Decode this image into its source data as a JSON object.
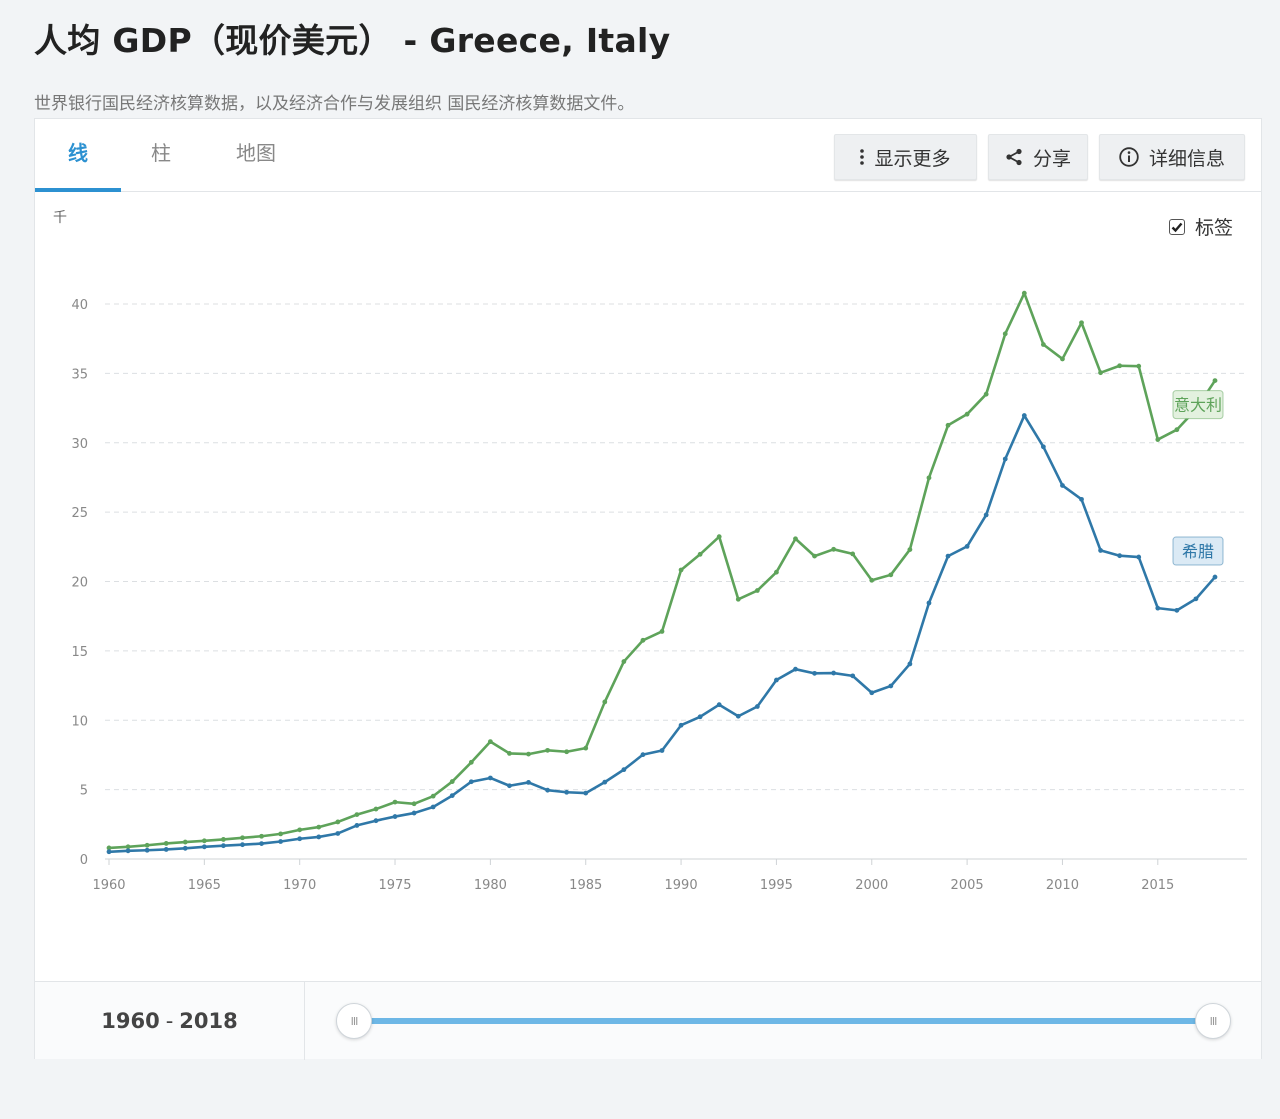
{
  "header": {
    "title": "人均 GDP（现价美元） - Greece, Italy",
    "source": "世界银行国民经济核算数据，以及经济合作与发展组织 国民经济核算数据文件。"
  },
  "tabs": [
    {
      "label": "线",
      "active": true
    },
    {
      "label": "柱",
      "active": false
    },
    {
      "label": "地图",
      "active": false
    }
  ],
  "toolbar": {
    "show_more": "显示更多",
    "share": "分享",
    "details": "详细信息"
  },
  "labels_toggle": {
    "label": "标签",
    "checked": true
  },
  "chart_data": {
    "type": "line",
    "unit_label": "千",
    "xlim": [
      1960,
      2018
    ],
    "ylim": [
      0,
      40
    ],
    "yticks": [
      0,
      5,
      10,
      15,
      20,
      25,
      30,
      35,
      40
    ],
    "xticks": [
      1960,
      1965,
      1970,
      1975,
      1980,
      1985,
      1990,
      1995,
      2000,
      2005,
      2010,
      2015
    ],
    "grid": true,
    "legend": "inline labels at line ends",
    "series": [
      {
        "name": "意大利",
        "color": "#5ea35a",
        "label_bg": "#e3f1df",
        "values": [
          0.8,
          0.88,
          0.99,
          1.12,
          1.22,
          1.31,
          1.41,
          1.53,
          1.64,
          1.81,
          2.1,
          2.3,
          2.67,
          3.2,
          3.6,
          4.1,
          3.98,
          4.53,
          5.58,
          6.97,
          8.46,
          7.61,
          7.56,
          7.83,
          7.73,
          7.99,
          11.32,
          14.23,
          15.76,
          16.4,
          20.83,
          21.96,
          23.23,
          18.72,
          19.35,
          20.67,
          23.08,
          21.83,
          22.32,
          21.99,
          20.09,
          20.48,
          22.3,
          27.47,
          31.26,
          32.06,
          33.5,
          37.85,
          40.78,
          37.08,
          36.04,
          38.65,
          35.05,
          35.55,
          35.52,
          30.23,
          30.94,
          32.41,
          34.48
        ]
      },
      {
        "name": "希腊",
        "color": "#2f78a8",
        "label_bg": "#dbeaf5",
        "values": [
          0.52,
          0.59,
          0.63,
          0.69,
          0.77,
          0.88,
          0.96,
          1.03,
          1.11,
          1.26,
          1.46,
          1.59,
          1.84,
          2.42,
          2.76,
          3.06,
          3.31,
          3.75,
          4.57,
          5.57,
          5.84,
          5.28,
          5.52,
          4.96,
          4.81,
          4.75,
          5.54,
          6.44,
          7.52,
          7.82,
          9.64,
          10.25,
          11.12,
          10.29,
          10.99,
          12.9,
          13.68,
          13.38,
          13.4,
          13.2,
          11.98,
          12.47,
          14.06,
          18.45,
          21.83,
          22.53,
          24.8,
          28.83,
          31.96,
          29.71,
          26.92,
          25.92,
          22.24,
          21.86,
          21.76,
          18.08,
          17.92,
          18.75,
          20.32
        ]
      }
    ]
  },
  "range": {
    "start": "1960",
    "sep": "-",
    "end": "2018"
  },
  "handles": {
    "left": "III",
    "right": "III"
  }
}
